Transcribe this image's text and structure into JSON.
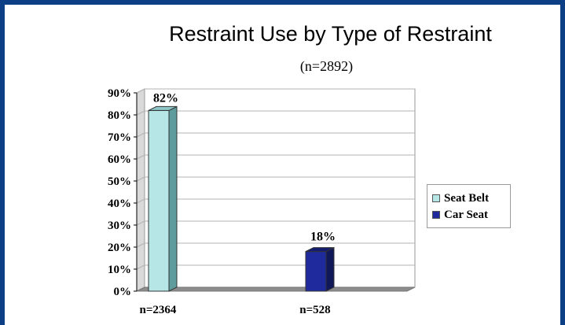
{
  "chart_data": {
    "type": "bar",
    "title": "Restraint Use by Type of Restraint",
    "subtitle": "(n=2892)",
    "categories": [
      "n=2364",
      "n=528"
    ],
    "series": [
      {
        "name": "Seat Belt",
        "values": [
          82,
          null
        ],
        "color": "#b7e6e7"
      },
      {
        "name": "Car Seat",
        "values": [
          null,
          18
        ],
        "color": "#1f2a9c"
      }
    ],
    "data_labels": [
      "82%",
      "18%"
    ],
    "y_ticks": [
      "0%",
      "10%",
      "20%",
      "30%",
      "40%",
      "50%",
      "60%",
      "70%",
      "80%",
      "90%"
    ],
    "ylim": [
      0,
      90
    ],
    "grid": true,
    "legend_position": "right"
  },
  "colors": {
    "frame": "#0d3f86"
  }
}
